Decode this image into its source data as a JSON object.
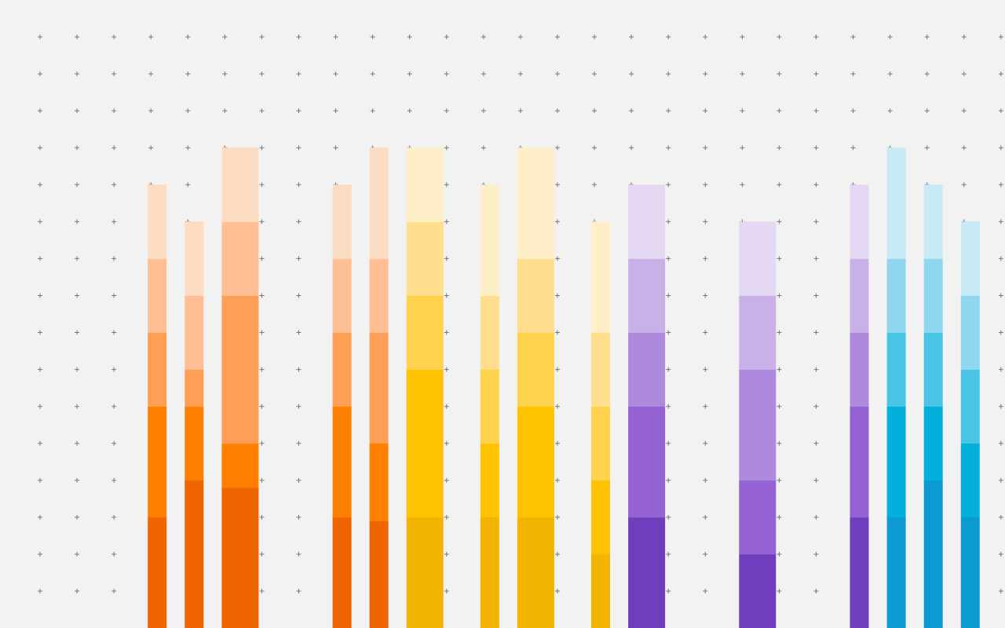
{
  "background": "#f2f2f2",
  "grid_mark_color": "#777777",
  "palettes": {
    "orange": [
      "#f06400",
      "#ff8000",
      "#ff9f55",
      "#ffbf94",
      "#fddcc4"
    ],
    "yellow": [
      "#f2b400",
      "#ffc200",
      "#ffd24d",
      "#ffdf8e",
      "#ffefc8"
    ],
    "purple": [
      "#6e3ebd",
      "#9462d3",
      "#ad8add",
      "#c9b1e8",
      "#e5d8f3"
    ],
    "blue": [
      "#0c9bd0",
      "#03b0dc",
      "#4ac5e6",
      "#8fd7ef",
      "#c7eaf4"
    ]
  },
  "bars": [
    {
      "palette": "orange",
      "wide": false,
      "segments": [
        3,
        3,
        2,
        2,
        2
      ]
    },
    {
      "palette": "orange",
      "wide": false,
      "segments": [
        4,
        2,
        1,
        2,
        2
      ]
    },
    {
      "palette": "orange",
      "wide": true,
      "segments": [
        3.8,
        1.2,
        4,
        2,
        2
      ]
    },
    {
      "palette": "orange",
      "wide": false,
      "segments": [
        3,
        3,
        2,
        2,
        2
      ]
    },
    {
      "palette": "orange",
      "wide": false,
      "segments": [
        2.9,
        2.1,
        3,
        2,
        3
      ]
    },
    {
      "palette": "yellow",
      "wide": true,
      "segments": [
        3,
        4,
        2,
        2,
        2
      ]
    },
    {
      "palette": "yellow",
      "wide": false,
      "segments": [
        3,
        2,
        2,
        2,
        3
      ]
    },
    {
      "palette": "yellow",
      "wide": true,
      "segments": [
        3,
        3,
        2,
        2,
        3
      ]
    },
    {
      "palette": "yellow",
      "wide": false,
      "segments": [
        2,
        2,
        2,
        2,
        3
      ]
    },
    {
      "palette": "purple",
      "wide": true,
      "segments": [
        3,
        3,
        2,
        2,
        2
      ]
    },
    {
      "palette": "purple",
      "wide": true,
      "segments": [
        2,
        2,
        3,
        2,
        2
      ]
    },
    {
      "palette": "purple",
      "wide": false,
      "segments": [
        3,
        3,
        2,
        2,
        2
      ]
    },
    {
      "palette": "blue",
      "wide": false,
      "segments": [
        3,
        3,
        2,
        2,
        3
      ]
    },
    {
      "palette": "blue",
      "wide": false,
      "segments": [
        4,
        2,
        2,
        2,
        2
      ]
    },
    {
      "palette": "blue",
      "wide": false,
      "segments": [
        3,
        2,
        2,
        2,
        2
      ]
    }
  ]
}
